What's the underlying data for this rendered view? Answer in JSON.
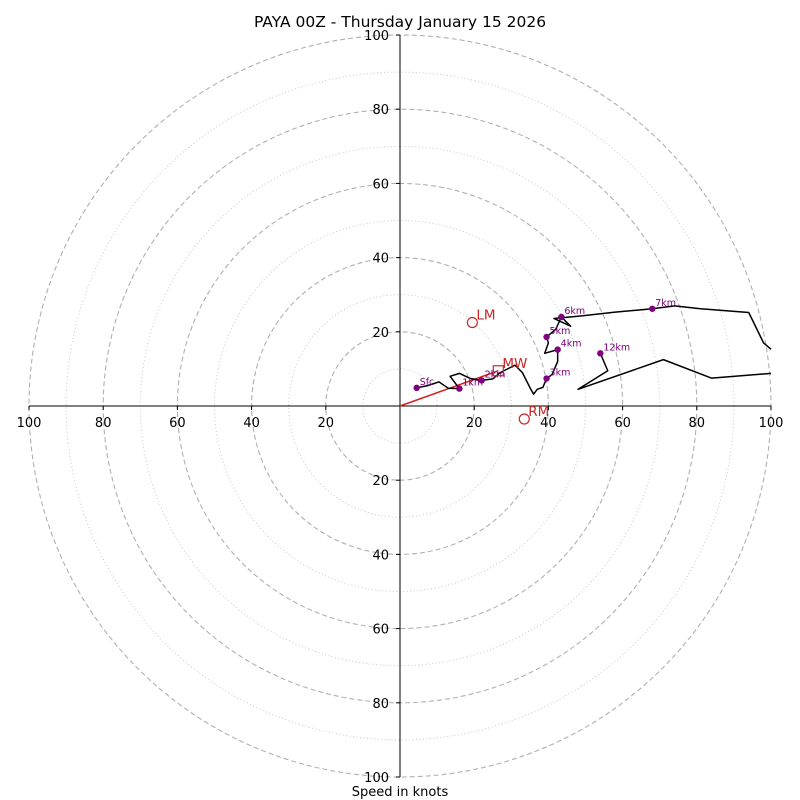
{
  "chart_data": {
    "type": "hodograph",
    "title": "PAYA 00Z - Thursday January 15 2026",
    "xlabel": "Speed in knots",
    "axis_range": [
      -100,
      100
    ],
    "ring_major": [
      20,
      40,
      60,
      80,
      100
    ],
    "ring_minor": [
      10,
      30,
      50,
      70,
      90
    ],
    "x_ticks": [
      {
        "value": -100,
        "label": "100"
      },
      {
        "value": -80,
        "label": "80"
      },
      {
        "value": -60,
        "label": "60"
      },
      {
        "value": -40,
        "label": "40"
      },
      {
        "value": -20,
        "label": "20"
      },
      {
        "value": 20,
        "label": "20"
      },
      {
        "value": 40,
        "label": "40"
      },
      {
        "value": 60,
        "label": "60"
      },
      {
        "value": 80,
        "label": "80"
      },
      {
        "value": 100,
        "label": "100"
      }
    ],
    "y_ticks": [
      {
        "value": 100,
        "label": "100"
      },
      {
        "value": 80,
        "label": "80"
      },
      {
        "value": 60,
        "label": "60"
      },
      {
        "value": 40,
        "label": "40"
      },
      {
        "value": 20,
        "label": "20"
      },
      {
        "value": -20,
        "label": "20"
      },
      {
        "value": -40,
        "label": "40"
      },
      {
        "value": -60,
        "label": "60"
      },
      {
        "value": -80,
        "label": "80"
      },
      {
        "value": -100,
        "label": "100"
      }
    ],
    "profile": {
      "color": "#000000",
      "points": [
        [
          4.5,
          4.9
        ],
        [
          7.5,
          5.5
        ],
        [
          10.5,
          6.5
        ],
        [
          13,
          4.8
        ],
        [
          16,
          4.7
        ],
        [
          13.5,
          8
        ],
        [
          16,
          8.8
        ],
        [
          19,
          7.4
        ],
        [
          22,
          6.9
        ],
        [
          25,
          7.3
        ],
        [
          27,
          9
        ],
        [
          31,
          11
        ],
        [
          33,
          9
        ],
        [
          35,
          5
        ],
        [
          36,
          3.2
        ],
        [
          37,
          4.5
        ],
        [
          38.5,
          5
        ],
        [
          39.5,
          7.4
        ],
        [
          41,
          8.5
        ],
        [
          42.5,
          12
        ],
        [
          42.5,
          15.2
        ],
        [
          39,
          14.2
        ],
        [
          40,
          17
        ],
        [
          39.5,
          18.6
        ],
        [
          42,
          20.7
        ],
        [
          43.5,
          24
        ],
        [
          46,
          21.5
        ],
        [
          41.5,
          23.6
        ],
        [
          49,
          24.3
        ],
        [
          58,
          25.3
        ],
        [
          68,
          26.2
        ],
        [
          74,
          27
        ],
        [
          81,
          26.2
        ],
        [
          94,
          25.2
        ],
        [
          98,
          17
        ],
        [
          100,
          15.3
        ]
      ],
      "tail": [
        [
          100,
          8.8
        ],
        [
          84,
          7.5
        ],
        [
          71,
          12.5
        ],
        [
          48,
          4.5
        ],
        [
          56,
          9.5
        ],
        [
          54,
          14.2
        ]
      ]
    },
    "levels": [
      {
        "label": "Sfc",
        "u": 4.5,
        "v": 4.9
      },
      {
        "label": "1km",
        "u": 16,
        "v": 4.7
      },
      {
        "label": "2km",
        "u": 22,
        "v": 6.9
      },
      {
        "label": "3km",
        "u": 39.5,
        "v": 7.4
      },
      {
        "label": "4km",
        "u": 42.5,
        "v": 15.2
      },
      {
        "label": "5km",
        "u": 39.5,
        "v": 18.6
      },
      {
        "label": "6km",
        "u": 43.5,
        "v": 24
      },
      {
        "label": "7km",
        "u": 68,
        "v": 26.2
      },
      {
        "label": "12km",
        "u": 54,
        "v": 14.2
      }
    ],
    "storm_motion": [
      {
        "label": "LM",
        "u": 19.5,
        "v": 22.5,
        "marker": "circle"
      },
      {
        "label": "MW",
        "u": 26.5,
        "v": 9.5,
        "marker": "square"
      },
      {
        "label": "RM",
        "u": 33.5,
        "v": -3.5,
        "marker": "circle"
      }
    ],
    "shear_vector": {
      "from": [
        0,
        0
      ],
      "to": [
        26.5,
        9.5
      ],
      "color": "#d62020"
    },
    "colors": {
      "ring": "#b0b0b0",
      "ring_minor": "#c8c8c8",
      "axis": "#000000",
      "level_point": "#800080",
      "level_label": "#800080",
      "storm_marker": "#c82828",
      "profile_line": "#000000"
    }
  }
}
